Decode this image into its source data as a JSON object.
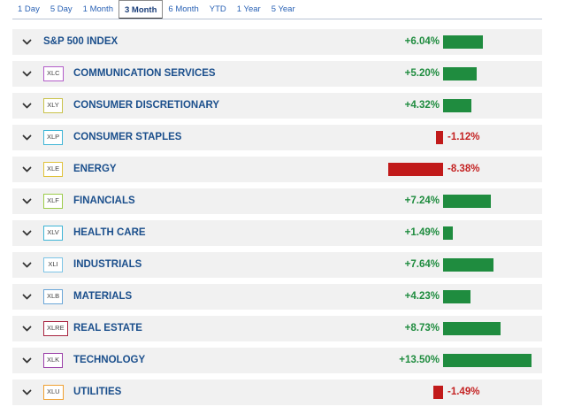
{
  "tabs": [
    "1 Day",
    "5 Day",
    "1 Month",
    "3 Month",
    "6 Month",
    "YTD",
    "1 Year",
    "5 Year"
  ],
  "active_tab": "3 Month",
  "colors": {
    "positive": "#1f8c3f",
    "negative": "#c11a1a"
  },
  "rows": [
    {
      "ticker": "",
      "ticker_color": "",
      "name": "S&P 500 INDEX",
      "pct": "+6.04%",
      "value": 6.04
    },
    {
      "ticker": "XLC",
      "ticker_color": "#b25cc9",
      "name": "COMMUNICATION SERVICES",
      "pct": "+5.20%",
      "value": 5.2
    },
    {
      "ticker": "XLY",
      "ticker_color": "#c9c24a",
      "name": "CONSUMER DISCRETIONARY",
      "pct": "+4.32%",
      "value": 4.32
    },
    {
      "ticker": "XLP",
      "ticker_color": "#3fb5d6",
      "name": "CONSUMER STAPLES",
      "pct": "-1.12%",
      "value": -1.12
    },
    {
      "ticker": "XLE",
      "ticker_color": "#e0c23a",
      "name": "ENERGY",
      "pct": "-8.38%",
      "value": -8.38
    },
    {
      "ticker": "XLF",
      "ticker_color": "#9ccc4a",
      "name": "FINANCIALS",
      "pct": "+7.24%",
      "value": 7.24
    },
    {
      "ticker": "XLV",
      "ticker_color": "#3fb5d6",
      "name": "HEALTH CARE",
      "pct": "+1.49%",
      "value": 1.49
    },
    {
      "ticker": "XLI",
      "ticker_color": "#7cc4e6",
      "name": "INDUSTRIALS",
      "pct": "+7.64%",
      "value": 7.64
    },
    {
      "ticker": "XLB",
      "ticker_color": "#6aa6d8",
      "name": "MATERIALS",
      "pct": "+4.23%",
      "value": 4.23
    },
    {
      "ticker": "XLRE",
      "ticker_color": "#a8243f",
      "name": "REAL ESTATE",
      "pct": "+8.73%",
      "value": 8.73
    },
    {
      "ticker": "XLK",
      "ticker_color": "#9a3ea8",
      "name": "TECHNOLOGY",
      "pct": "+13.50%",
      "value": 13.5
    },
    {
      "ticker": "XLU",
      "ticker_color": "#f0a030",
      "name": "UTILITIES",
      "pct": "-1.49%",
      "value": -1.49
    }
  ]
}
